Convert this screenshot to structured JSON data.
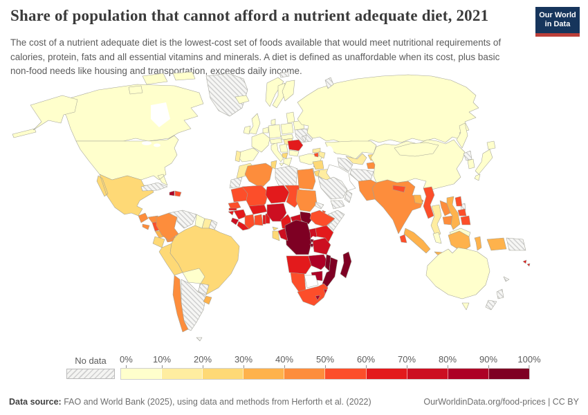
{
  "header": {
    "title": "Share of population that cannot afford a nutrient adequate diet, 2021",
    "subtitle": "The cost of a nutrient adequate diet is the lowest-cost set of foods available that would meet nutritional requirements of calories, protein, fats and all essential vitamins and minerals. A diet is defined as unaffordable when its cost, plus basic non-food needs like housing and transportation, exceeds daily income.",
    "logo": {
      "line1": "Our World",
      "line2": "in Data"
    }
  },
  "legend": {
    "no_data_label": "No data",
    "tick_labels": [
      "0%",
      "10%",
      "20%",
      "30%",
      "40%",
      "50%",
      "60%",
      "70%",
      "80%",
      "90%",
      "100%"
    ],
    "colors": [
      "#FFFFCC",
      "#FFEDA0",
      "#FED976",
      "#FEB24C",
      "#FD8D3C",
      "#FC4E2A",
      "#E31A1C",
      "#CC0F21",
      "#AD0026",
      "#7E0023"
    ],
    "no_data_fill": "#f4f4f2"
  },
  "footer": {
    "source_label": "Data source:",
    "source_text": "FAO and World Bank (2025), using data and methods from Herforth et al. (2022)",
    "attribution": "OurWorldinData.org/food-prices | CC BY"
  },
  "chart_data": {
    "type": "heatmap",
    "subtype": "world-choropleth",
    "title": "Share of population that cannot afford a nutrient adequate diet, 2021",
    "unit": "%",
    "legend_range": [
      0,
      100
    ],
    "bin_labels": [
      "0-10%",
      "10-20%",
      "20-30%",
      "30-40%",
      "40-50%",
      "50-60%",
      "60-70%",
      "70-80%",
      "80-90%",
      "90-100%"
    ],
    "note": "bin is an index into legend colors; 'nodata' = hatched, 'none' = shown white",
    "countries": {
      "canada": {
        "name": "Canada",
        "bin": 0
      },
      "usa": {
        "name": "United States",
        "bin": 0
      },
      "greenland": {
        "name": "Greenland",
        "bin": "nodata"
      },
      "mexico": {
        "name": "Mexico",
        "bin": 2
      },
      "guatemala": {
        "name": "Guatemala",
        "bin": 4
      },
      "honduras": {
        "name": "Honduras",
        "bin": 4
      },
      "el_salvador": {
        "name": "El Salvador",
        "bin": 4
      },
      "nicaragua": {
        "name": "Nicaragua",
        "bin": 5
      },
      "costa_rica": {
        "name": "Costa Rica",
        "bin": 3
      },
      "panama": {
        "name": "Panama",
        "bin": 4
      },
      "cuba": {
        "name": "Cuba",
        "bin": "nodata"
      },
      "haiti": {
        "name": "Haiti",
        "bin": 8
      },
      "dominican_republic": {
        "name": "Dominican Republic",
        "bin": 5
      },
      "colombia": {
        "name": "Colombia",
        "bin": 4
      },
      "venezuela": {
        "name": "Venezuela",
        "bin": "nodata"
      },
      "guyana": {
        "name": "Guyana",
        "bin": 0
      },
      "suriname": {
        "name": "Suriname",
        "bin": 1
      },
      "french_guiana": {
        "name": "French Guiana",
        "bin": "nodata"
      },
      "ecuador": {
        "name": "Ecuador",
        "bin": 2
      },
      "peru": {
        "name": "Peru",
        "bin": 2
      },
      "brazil": {
        "name": "Brazil",
        "bin": 2
      },
      "bolivia": {
        "name": "Bolivia",
        "bin": 0
      },
      "paraguay": {
        "name": "Paraguay",
        "bin": "nodata"
      },
      "chile": {
        "name": "Chile",
        "bin": 4
      },
      "argentina": {
        "name": "Argentina",
        "bin": "nodata"
      },
      "uruguay": {
        "name": "Uruguay",
        "bin": 3
      },
      "falkland_islands": {
        "name": "Falkland Islands",
        "bin": "nodata"
      },
      "iceland": {
        "name": "Iceland",
        "bin": 0
      },
      "uk": {
        "name": "United Kingdom",
        "bin": 0
      },
      "ireland": {
        "name": "Ireland",
        "bin": 0
      },
      "norway": {
        "name": "Norway",
        "bin": 0
      },
      "sweden": {
        "name": "Sweden",
        "bin": 0
      },
      "finland": {
        "name": "Finland",
        "bin": 0
      },
      "denmark": {
        "name": "Denmark",
        "bin": 0
      },
      "benelux": {
        "name": "Belgium & Netherlands",
        "bin": 0
      },
      "germany": {
        "name": "Germany",
        "bin": 0
      },
      "france": {
        "name": "France",
        "bin": 0
      },
      "spain": {
        "name": "Spain",
        "bin": 0
      },
      "portugal": {
        "name": "Portugal",
        "bin": 1
      },
      "italy": {
        "name": "Italy",
        "bin": 0
      },
      "switzerland_austria": {
        "name": "Switzerland & Austria",
        "bin": 0
      },
      "poland": {
        "name": "Poland",
        "bin": 0
      },
      "czechia_slovakia": {
        "name": "Czechia & Slovakia",
        "bin": 0
      },
      "hungary": {
        "name": "Hungary",
        "bin": 1
      },
      "romania": {
        "name": "Romania",
        "bin": 6
      },
      "serbia_balkans": {
        "name": "Serbia & Western Balkans",
        "bin": 0
      },
      "albania": {
        "name": "Albania",
        "bin": 2
      },
      "bulgaria": {
        "name": "Bulgaria",
        "bin": 0
      },
      "greece": {
        "name": "Greece",
        "bin": 0
      },
      "baltics": {
        "name": "Baltic states",
        "bin": 0
      },
      "belarus": {
        "name": "Belarus",
        "bin": 0
      },
      "ukraine": {
        "name": "Ukraine",
        "bin": "nodata"
      },
      "moldova": {
        "name": "Moldova",
        "bin": "nodata"
      },
      "russia": {
        "name": "Russia",
        "bin": 0
      },
      "svalbard": {
        "name": "Svalbard",
        "bin": "nodata"
      },
      "novaya_zemlya": {
        "name": "Novaya Zemlya",
        "bin": "nodata"
      },
      "turkey": {
        "name": "Turkey",
        "bin": 0
      },
      "cyprus": {
        "name": "Cyprus",
        "bin": 3
      },
      "syria": {
        "name": "Syria",
        "bin": 2
      },
      "iraq": {
        "name": "Iraq",
        "bin": 1
      },
      "iran": {
        "name": "Iran",
        "bin": "none"
      },
      "jordan": {
        "name": "Jordan",
        "bin": 2
      },
      "israel_lebanon": {
        "name": "Israel & Lebanon",
        "bin": 0
      },
      "saudi_arabia": {
        "name": "Saudi Arabia",
        "bin": "nodata"
      },
      "yemen": {
        "name": "Yemen",
        "bin": "nodata"
      },
      "oman": {
        "name": "Oman",
        "bin": "nodata"
      },
      "georgia": {
        "name": "Georgia",
        "bin": 1
      },
      "armenia": {
        "name": "Armenia",
        "bin": 5
      },
      "azerbaijan": {
        "name": "Azerbaijan",
        "bin": 1
      },
      "kazakhstan": {
        "name": "Kazakhstan",
        "bin": 0
      },
      "uzbekistan": {
        "name": "Uzbekistan",
        "bin": 1
      },
      "turkmenistan": {
        "name": "Turkmenistan",
        "bin": "nodata"
      },
      "kyrgyzstan": {
        "name": "Kyrgyzstan",
        "bin": 2
      },
      "tajikistan": {
        "name": "Tajikistan",
        "bin": 4
      },
      "afghanistan": {
        "name": "Afghanistan",
        "bin": "nodata"
      },
      "pakistan": {
        "name": "Pakistan",
        "bin": 4
      },
      "india": {
        "name": "India",
        "bin": 4
      },
      "nepal": {
        "name": "Nepal",
        "bin": 5
      },
      "bangladesh": {
        "name": "Bangladesh",
        "bin": 3
      },
      "sri_lanka": {
        "name": "Sri Lanka",
        "bin": 5
      },
      "myanmar": {
        "name": "Myanmar",
        "bin": 5
      },
      "thailand": {
        "name": "Thailand",
        "bin": 1
      },
      "laos": {
        "name": "Laos",
        "bin": 4
      },
      "cambodia": {
        "name": "Cambodia",
        "bin": 4
      },
      "vietnam": {
        "name": "Vietnam",
        "bin": 3
      },
      "china": {
        "name": "China",
        "bin": 0
      },
      "mongolia": {
        "name": "Mongolia",
        "bin": 0
      },
      "north_korea": {
        "name": "North Korea",
        "bin": "nodata"
      },
      "south_korea": {
        "name": "South Korea",
        "bin": 0
      },
      "japan": {
        "name": "Japan",
        "bin": 0
      },
      "taiwan": {
        "name": "Taiwan",
        "bin": "nodata"
      },
      "philippines": {
        "name": "Philippines",
        "bin": 5
      },
      "malaysia": {
        "name": "Malaysia",
        "bin": 0
      },
      "indonesia": {
        "name": "Indonesia",
        "bin": 3
      },
      "papua_new_guinea": {
        "name": "Papua New Guinea",
        "bin": "nodata"
      },
      "timor": {
        "name": "Timor-Leste",
        "bin": "nodata"
      },
      "australia": {
        "name": "Australia",
        "bin": 0
      },
      "new_zealand": {
        "name": "New Zealand",
        "bin": "nodata"
      },
      "new_caledonia": {
        "name": "New Caledonia",
        "bin": "nodata"
      },
      "fiji": {
        "name": "Fiji",
        "bin": 6
      },
      "morocco": {
        "name": "Morocco",
        "bin": 1
      },
      "western_sahara": {
        "name": "Western Sahara",
        "bin": "nodata"
      },
      "algeria": {
        "name": "Algeria",
        "bin": 4
      },
      "tunisia": {
        "name": "Tunisia",
        "bin": 2
      },
      "libya": {
        "name": "Libya",
        "bin": "nodata"
      },
      "egypt": {
        "name": "Egypt",
        "bin": 4
      },
      "mauritania": {
        "name": "Mauritania",
        "bin": 5
      },
      "mali": {
        "name": "Mali",
        "bin": 5
      },
      "niger": {
        "name": "Niger",
        "bin": 6
      },
      "chad": {
        "name": "Chad",
        "bin": 5
      },
      "sudan": {
        "name": "Sudan",
        "bin": 4
      },
      "eritrea": {
        "name": "Eritrea",
        "bin": "nodata"
      },
      "djibouti": {
        "name": "Djibouti",
        "bin": 5
      },
      "ethiopia": {
        "name": "Ethiopia",
        "bin": 5
      },
      "somalia": {
        "name": "Somalia",
        "bin": "nodata"
      },
      "senegal": {
        "name": "Senegal",
        "bin": 5
      },
      "gambia": {
        "name": "Gambia",
        "bin": 6
      },
      "guinea_bissau": {
        "name": "Guinea-Bissau",
        "bin": 6
      },
      "guinea": {
        "name": "Guinea",
        "bin": 6
      },
      "sierra_leone": {
        "name": "Sierra Leone",
        "bin": 7
      },
      "liberia": {
        "name": "Liberia",
        "bin": 6
      },
      "cote_divoire": {
        "name": "Côte d'Ivoire",
        "bin": 5
      },
      "ghana": {
        "name": "Ghana",
        "bin": 5
      },
      "togo": {
        "name": "Togo",
        "bin": 6
      },
      "benin": {
        "name": "Benin",
        "bin": 6
      },
      "burkina_faso": {
        "name": "Burkina Faso",
        "bin": 6
      },
      "nigeria": {
        "name": "Nigeria",
        "bin": 7
      },
      "cameroon": {
        "name": "Cameroon",
        "bin": 6
      },
      "central_african_republic": {
        "name": "Central African Republic",
        "bin": 7
      },
      "south_sudan": {
        "name": "South Sudan",
        "bin": 9
      },
      "uganda": {
        "name": "Uganda",
        "bin": 7
      },
      "kenya": {
        "name": "Kenya",
        "bin": 6
      },
      "drc": {
        "name": "Democratic Republic of Congo",
        "bin": 9
      },
      "congo": {
        "name": "Congo",
        "bin": 7
      },
      "gabon": {
        "name": "Gabon",
        "bin": 2
      },
      "equatorial_guinea": {
        "name": "Equatorial Guinea",
        "bin": 2
      },
      "rwanda": {
        "name": "Rwanda",
        "bin": 9
      },
      "burundi": {
        "name": "Burundi",
        "bin": 9
      },
      "tanzania": {
        "name": "Tanzania",
        "bin": 7
      },
      "angola": {
        "name": "Angola",
        "bin": 6
      },
      "zambia": {
        "name": "Zambia",
        "bin": 8
      },
      "malawi": {
        "name": "Malawi",
        "bin": 9
      },
      "mozambique": {
        "name": "Mozambique",
        "bin": 9
      },
      "zimbabwe": {
        "name": "Zimbabwe",
        "bin": 8
      },
      "botswana": {
        "name": "Botswana",
        "bin": "none"
      },
      "namibia": {
        "name": "Namibia",
        "bin": 5
      },
      "south_africa": {
        "name": "South Africa",
        "bin": 5
      },
      "lesotho": {
        "name": "Lesotho",
        "bin": 8
      },
      "eswatini": {
        "name": "Eswatini",
        "bin": 7
      },
      "madagascar": {
        "name": "Madagascar",
        "bin": 9
      }
    }
  }
}
